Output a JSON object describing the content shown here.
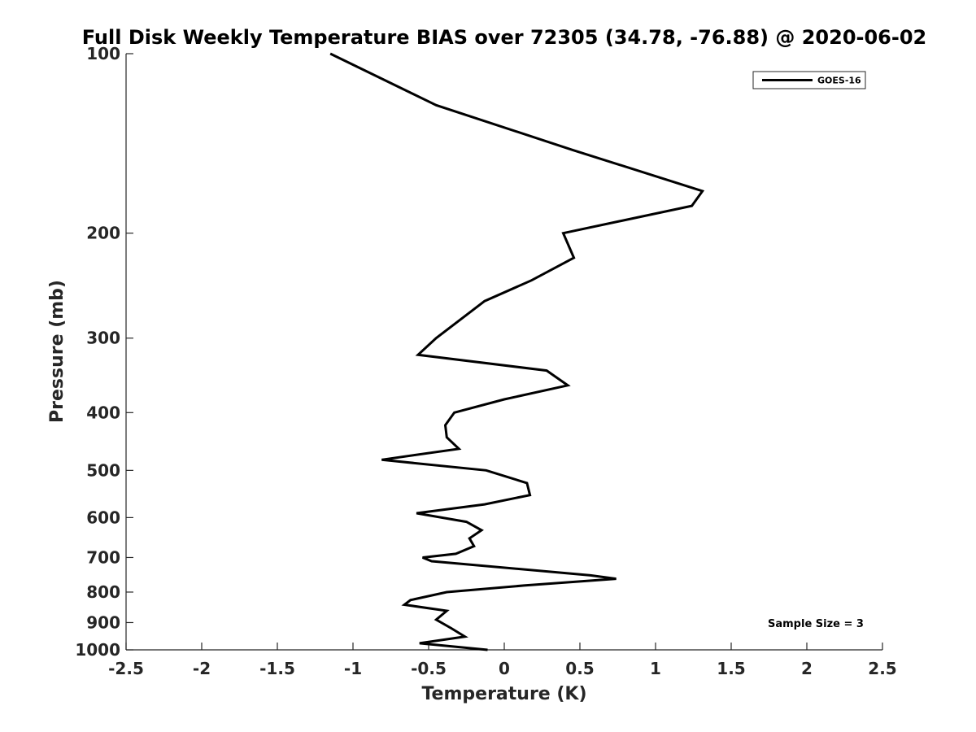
{
  "chart_data": {
    "type": "line",
    "title": "Full Disk Weekly Temperature BIAS over 72305 (34.78, -76.88) @ 2020-06-02",
    "xlabel": "Temperature (K)",
    "ylabel": "Pressure (mb)",
    "xlim": [
      -2.5,
      2.5
    ],
    "ylim": [
      1000,
      100
    ],
    "y_scale": "log",
    "y_reversed": true,
    "x_ticks": [
      -2.5,
      -2,
      -1.5,
      -1,
      -0.5,
      0,
      0.5,
      1,
      1.5,
      2,
      2.5
    ],
    "x_tick_labels": [
      "-2.5",
      "-2",
      "-1.5",
      "-1",
      "-0.5",
      "0",
      "0.5",
      "1",
      "1.5",
      "2",
      "2.5"
    ],
    "y_ticks": [
      100,
      200,
      300,
      400,
      500,
      600,
      700,
      800,
      900,
      1000
    ],
    "y_tick_labels": [
      "100",
      "200",
      "300",
      "400",
      "500",
      "600",
      "700",
      "800",
      "900",
      "1000"
    ],
    "grid": false,
    "legend_position": "top-right",
    "series": [
      {
        "name": "GOES-16",
        "color": "#000000",
        "points": [
          [
            -1.15,
            100
          ],
          [
            -0.45,
            122
          ],
          [
            0.45,
            145
          ],
          [
            1.31,
            170
          ],
          [
            1.24,
            180
          ],
          [
            0.39,
            200
          ],
          [
            0.46,
            220
          ],
          [
            0.18,
            240
          ],
          [
            -0.13,
            260
          ],
          [
            -0.45,
            300
          ],
          [
            -0.57,
            320
          ],
          [
            0.28,
            340
          ],
          [
            0.42,
            360
          ],
          [
            0.0,
            380
          ],
          [
            -0.33,
            400
          ],
          [
            -0.39,
            420
          ],
          [
            -0.38,
            440
          ],
          [
            -0.3,
            460
          ],
          [
            -0.81,
            480
          ],
          [
            -0.12,
            500
          ],
          [
            0.15,
            525
          ],
          [
            0.17,
            550
          ],
          [
            -0.13,
            570
          ],
          [
            -0.58,
            590
          ],
          [
            -0.25,
            610
          ],
          [
            -0.15,
            630
          ],
          [
            -0.23,
            650
          ],
          [
            -0.2,
            670
          ],
          [
            -0.32,
            690
          ],
          [
            -0.54,
            700
          ],
          [
            -0.48,
            710
          ],
          [
            0.57,
            750
          ],
          [
            0.74,
            760
          ],
          [
            0.13,
            780
          ],
          [
            -0.38,
            800
          ],
          [
            -0.62,
            825
          ],
          [
            -0.66,
            840
          ],
          [
            -0.38,
            860
          ],
          [
            -0.45,
            890
          ],
          [
            -0.35,
            920
          ],
          [
            -0.26,
            950
          ],
          [
            -0.56,
            975
          ],
          [
            -0.11,
            1000
          ]
        ]
      }
    ],
    "annotation": "Sample Size = 3"
  }
}
